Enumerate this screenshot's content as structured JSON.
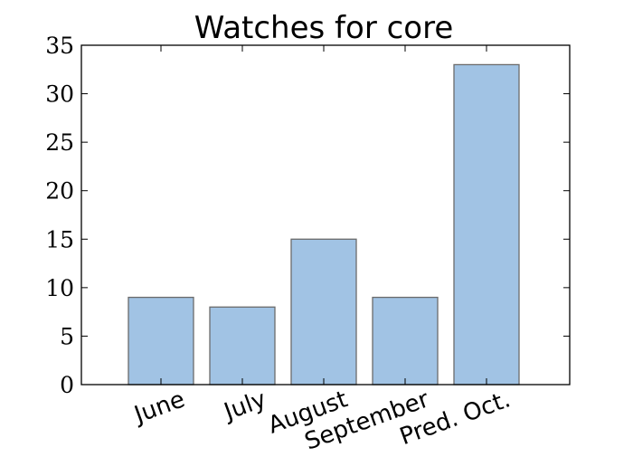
{
  "chart_data": {
    "type": "bar",
    "title": "Watches for core",
    "categories": [
      "June",
      "July",
      "August",
      "September",
      "Pred. Oct."
    ],
    "values": [
      9,
      8,
      15,
      9,
      33
    ],
    "xlabel": "",
    "ylabel": "",
    "ylim": [
      0,
      35
    ],
    "yticks": [
      0,
      5,
      10,
      15,
      20,
      25,
      30,
      35
    ],
    "grid": false,
    "bar_color": "#a1c3e4",
    "bar_edge_color": "#6b6b6b",
    "axis_color": "#000000"
  }
}
